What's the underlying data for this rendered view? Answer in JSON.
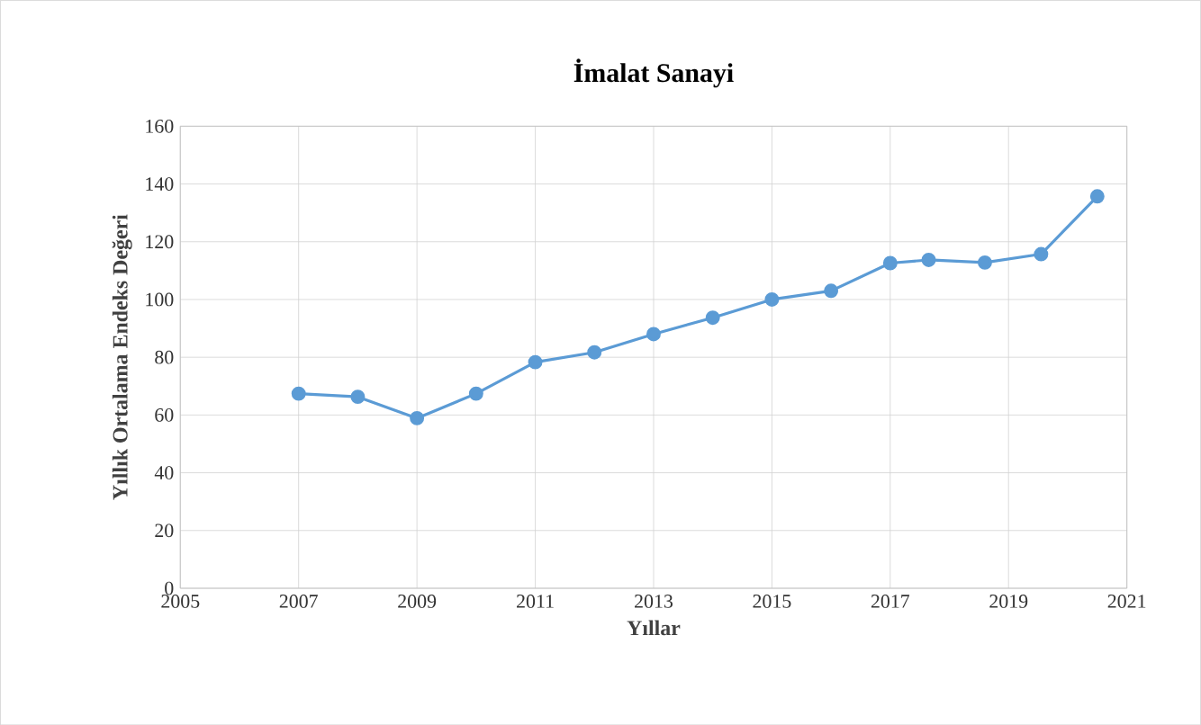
{
  "chart_data": {
    "type": "line",
    "title": "İmalat Sanayi",
    "xlabel": "Yıllar",
    "ylabel": "Yıllık Ortalama Endeks Değeri",
    "x": [
      2007,
      2008,
      2009,
      2010,
      2011,
      2012,
      2013,
      2014,
      2015,
      2016,
      2017,
      2017.65,
      2018.6,
      2019.55,
      2020.5
    ],
    "series": [
      {
        "color": "#5b9bd5",
        "values": [
          67.4,
          66.3,
          58.9,
          67.4,
          78.3,
          81.7,
          88.0,
          93.7,
          100,
          103,
          112.6,
          113.7,
          112.8,
          115.7,
          135.7
        ]
      }
    ],
    "xlim": [
      2005,
      2021
    ],
    "xticks": [
      2005,
      2007,
      2009,
      2011,
      2013,
      2015,
      2017,
      2019,
      2021
    ],
    "ylim": [
      0,
      160
    ],
    "yticks": [
      0,
      20,
      40,
      60,
      80,
      100,
      120,
      140,
      160
    ],
    "grid": true,
    "marker": "circle",
    "line_style": "solid"
  }
}
